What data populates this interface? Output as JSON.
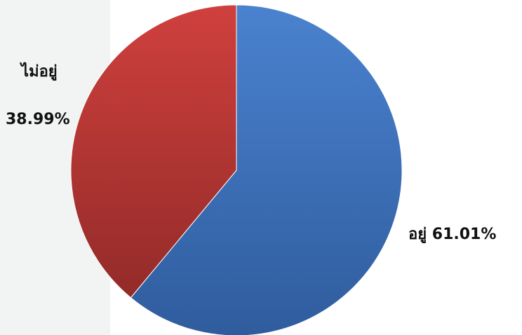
{
  "chart_data": {
    "type": "pie",
    "title": "",
    "slices": [
      {
        "label": "อยู่",
        "value": 61.01,
        "value_text": "61.01%",
        "color": "#3b6fb6"
      },
      {
        "label": "ไม่อยู่",
        "value": 38.99,
        "value_text": "38.99%",
        "color": "#b33a38"
      }
    ],
    "start_angle_deg": 0,
    "direction": "clockwise",
    "legend": "none",
    "data_labels": "outside"
  },
  "colors": {
    "blue_light": "#4a82cf",
    "blue_dark": "#2f5c9d",
    "red_light": "#cf403d",
    "red_dark": "#932b29",
    "side_panel": "#f2f4f4"
  }
}
